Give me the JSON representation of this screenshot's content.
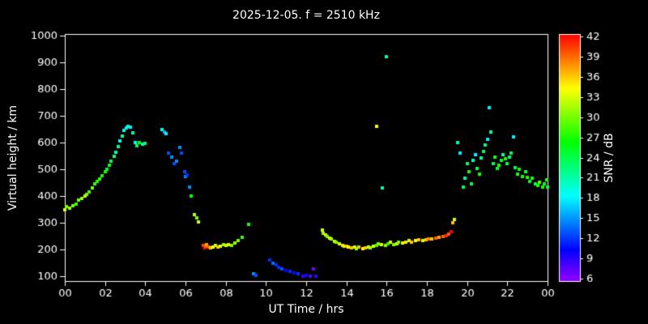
{
  "colors": {
    "background": "#000000",
    "axis": "#ffffff",
    "text": "#ffffff"
  },
  "chart_data": {
    "type": "scatter",
    "title": "2025-12-05. f = 2510 kHz",
    "xlabel": "UT Time / hrs",
    "ylabel": "Virtual height / km",
    "colorbar_label": "SNR / dB",
    "xlim": [
      0,
      24
    ],
    "ylim": [
      100,
      1000
    ],
    "grid": false,
    "x_ticks": [
      0,
      2,
      4,
      6,
      8,
      10,
      12,
      14,
      16,
      18,
      20,
      22,
      24
    ],
    "x_tick_labels": [
      "00",
      "02",
      "04",
      "06",
      "08",
      "10",
      "12",
      "14",
      "16",
      "18",
      "20",
      "22",
      "00"
    ],
    "y_ticks": [
      100,
      200,
      300,
      400,
      500,
      600,
      700,
      800,
      900,
      1000
    ],
    "y_tick_labels": [
      "100",
      "200",
      "300",
      "400",
      "500",
      "600",
      "700",
      "800",
      "900",
      "1000"
    ],
    "colorbar": {
      "min": 6,
      "max": 42,
      "ticks": [
        6,
        9,
        12,
        15,
        18,
        21,
        24,
        27,
        30,
        33,
        36,
        39,
        42
      ]
    },
    "points_format": [
      "ut_hours",
      "virtual_height_km",
      "snr_db"
    ],
    "points": [
      [
        0.02,
        350,
        33
      ],
      [
        0.1,
        360,
        30
      ],
      [
        0.25,
        355,
        31
      ],
      [
        0.4,
        365,
        30
      ],
      [
        0.55,
        370,
        28
      ],
      [
        0.7,
        385,
        30
      ],
      [
        0.85,
        390,
        31
      ],
      [
        1.0,
        400,
        33
      ],
      [
        1.1,
        405,
        30
      ],
      [
        1.2,
        415,
        28
      ],
      [
        1.35,
        430,
        30
      ],
      [
        1.5,
        445,
        28
      ],
      [
        1.6,
        455,
        27
      ],
      [
        1.75,
        465,
        28
      ],
      [
        1.85,
        475,
        27
      ],
      [
        2.0,
        490,
        27
      ],
      [
        2.1,
        500,
        25
      ],
      [
        2.2,
        515,
        27
      ],
      [
        2.3,
        530,
        24
      ],
      [
        2.45,
        550,
        22
      ],
      [
        2.55,
        565,
        21
      ],
      [
        2.65,
        585,
        21
      ],
      [
        2.75,
        605,
        19
      ],
      [
        2.85,
        625,
        21
      ],
      [
        2.95,
        645,
        19
      ],
      [
        3.05,
        655,
        18
      ],
      [
        3.15,
        660,
        20
      ],
      [
        3.25,
        658,
        18
      ],
      [
        3.4,
        635,
        21
      ],
      [
        3.5,
        600,
        19
      ],
      [
        3.6,
        588,
        24
      ],
      [
        3.7,
        600,
        26
      ],
      [
        3.85,
        595,
        21
      ],
      [
        4.0,
        598,
        22
      ],
      [
        4.85,
        648,
        19
      ],
      [
        4.95,
        640,
        16
      ],
      [
        5.05,
        632,
        18
      ],
      [
        5.15,
        560,
        13
      ],
      [
        5.3,
        545,
        15
      ],
      [
        5.45,
        522,
        13
      ],
      [
        5.55,
        530,
        15
      ],
      [
        5.7,
        582,
        15
      ],
      [
        5.8,
        562,
        13
      ],
      [
        5.95,
        490,
        13
      ],
      [
        6.0,
        472,
        15
      ],
      [
        6.1,
        480,
        12
      ],
      [
        6.2,
        432,
        15
      ],
      [
        6.3,
        400,
        26
      ],
      [
        6.45,
        330,
        32
      ],
      [
        6.55,
        318,
        30
      ],
      [
        6.65,
        302,
        33
      ],
      [
        6.9,
        215,
        40
      ],
      [
        6.95,
        205,
        42
      ],
      [
        7.0,
        212,
        39
      ],
      [
        7.05,
        218,
        37
      ],
      [
        7.15,
        208,
        39
      ],
      [
        7.25,
        205,
        36
      ],
      [
        7.35,
        210,
        34
      ],
      [
        7.5,
        214,
        33
      ],
      [
        7.6,
        209,
        36
      ],
      [
        7.75,
        213,
        33
      ],
      [
        7.9,
        218,
        31
      ],
      [
        8.0,
        214,
        33
      ],
      [
        8.15,
        219,
        33
      ],
      [
        8.3,
        215,
        30
      ],
      [
        8.45,
        224,
        31
      ],
      [
        8.6,
        232,
        30
      ],
      [
        8.8,
        244,
        28
      ],
      [
        9.15,
        293,
        27
      ],
      [
        9.4,
        110,
        15
      ],
      [
        9.5,
        104,
        13
      ],
      [
        10.2,
        160,
        12
      ],
      [
        10.35,
        150,
        14
      ],
      [
        10.5,
        142,
        12
      ],
      [
        10.65,
        133,
        12
      ],
      [
        10.8,
        127,
        13
      ],
      [
        11.0,
        122,
        10
      ],
      [
        11.2,
        117,
        12
      ],
      [
        11.4,
        112,
        11
      ],
      [
        11.6,
        108,
        12
      ],
      [
        11.85,
        101,
        9
      ],
      [
        12.0,
        104,
        11
      ],
      [
        12.2,
        100,
        8
      ],
      [
        12.35,
        128,
        7
      ],
      [
        12.5,
        100,
        9
      ],
      [
        12.8,
        272,
        33
      ],
      [
        12.85,
        262,
        31
      ],
      [
        12.95,
        255,
        33
      ],
      [
        13.05,
        248,
        30
      ],
      [
        13.15,
        243,
        33
      ],
      [
        13.25,
        238,
        31
      ],
      [
        13.4,
        230,
        33
      ],
      [
        13.5,
        226,
        30
      ],
      [
        13.65,
        220,
        33
      ],
      [
        13.8,
        216,
        35
      ],
      [
        13.9,
        211,
        33
      ],
      [
        14.0,
        213,
        36
      ],
      [
        14.1,
        208,
        34
      ],
      [
        14.25,
        205,
        36
      ],
      [
        14.4,
        210,
        33
      ],
      [
        14.5,
        204,
        31
      ],
      [
        14.6,
        208,
        36
      ],
      [
        14.8,
        203,
        34
      ],
      [
        14.95,
        206,
        36
      ],
      [
        15.1,
        210,
        33
      ],
      [
        15.2,
        206,
        31
      ],
      [
        15.35,
        212,
        33
      ],
      [
        15.5,
        216,
        28
      ],
      [
        15.6,
        222,
        30
      ],
      [
        15.75,
        218,
        33
      ],
      [
        15.95,
        214,
        31
      ],
      [
        16.05,
        220,
        27
      ],
      [
        16.2,
        226,
        33
      ],
      [
        16.35,
        218,
        30
      ],
      [
        16.5,
        222,
        33
      ],
      [
        16.6,
        228,
        30
      ],
      [
        16.8,
        225,
        33
      ],
      [
        16.95,
        228,
        35
      ],
      [
        17.1,
        232,
        33
      ],
      [
        17.25,
        228,
        36
      ],
      [
        17.45,
        232,
        34
      ],
      [
        17.6,
        235,
        36
      ],
      [
        17.8,
        232,
        33
      ],
      [
        17.95,
        236,
        36
      ],
      [
        18.1,
        238,
        38
      ],
      [
        18.25,
        240,
        36
      ],
      [
        18.45,
        242,
        39
      ],
      [
        18.6,
        245,
        37
      ],
      [
        18.8,
        248,
        39
      ],
      [
        18.95,
        252,
        41
      ],
      [
        19.1,
        258,
        39
      ],
      [
        19.2,
        266,
        42
      ],
      [
        19.3,
        300,
        36
      ],
      [
        19.38,
        312,
        33
      ],
      [
        15.5,
        660,
        34
      ],
      [
        15.8,
        430,
        21
      ],
      [
        16.0,
        920,
        21
      ],
      [
        19.55,
        600,
        21
      ],
      [
        19.65,
        560,
        18
      ],
      [
        19.8,
        432,
        24
      ],
      [
        19.9,
        468,
        21
      ],
      [
        20.0,
        522,
        24
      ],
      [
        20.1,
        492,
        27
      ],
      [
        20.2,
        446,
        24
      ],
      [
        20.3,
        532,
        21
      ],
      [
        20.4,
        556,
        18
      ],
      [
        20.5,
        502,
        24
      ],
      [
        20.6,
        482,
        27
      ],
      [
        20.7,
        542,
        21
      ],
      [
        20.8,
        566,
        24
      ],
      [
        20.9,
        590,
        22
      ],
      [
        21.0,
        612,
        18
      ],
      [
        21.1,
        730,
        18
      ],
      [
        21.2,
        640,
        21
      ],
      [
        21.3,
        522,
        24
      ],
      [
        21.4,
        546,
        27
      ],
      [
        21.5,
        502,
        25
      ],
      [
        21.6,
        516,
        27
      ],
      [
        21.7,
        532,
        24
      ],
      [
        21.8,
        556,
        21
      ],
      [
        21.9,
        540,
        27
      ],
      [
        22.0,
        522,
        24
      ],
      [
        22.1,
        546,
        22
      ],
      [
        22.2,
        562,
        24
      ],
      [
        22.3,
        622,
        18
      ],
      [
        22.4,
        506,
        24
      ],
      [
        22.5,
        482,
        27
      ],
      [
        22.6,
        500,
        25
      ],
      [
        22.75,
        472,
        27
      ],
      [
        22.9,
        492,
        24
      ],
      [
        23.0,
        470,
        27
      ],
      [
        23.1,
        456,
        25
      ],
      [
        23.25,
        466,
        27
      ],
      [
        23.4,
        446,
        24
      ],
      [
        23.5,
        440,
        27
      ],
      [
        23.6,
        452,
        29
      ],
      [
        23.75,
        432,
        27
      ],
      [
        23.85,
        446,
        25
      ],
      [
        23.95,
        462,
        27
      ],
      [
        24.0,
        432,
        24
      ]
    ]
  }
}
